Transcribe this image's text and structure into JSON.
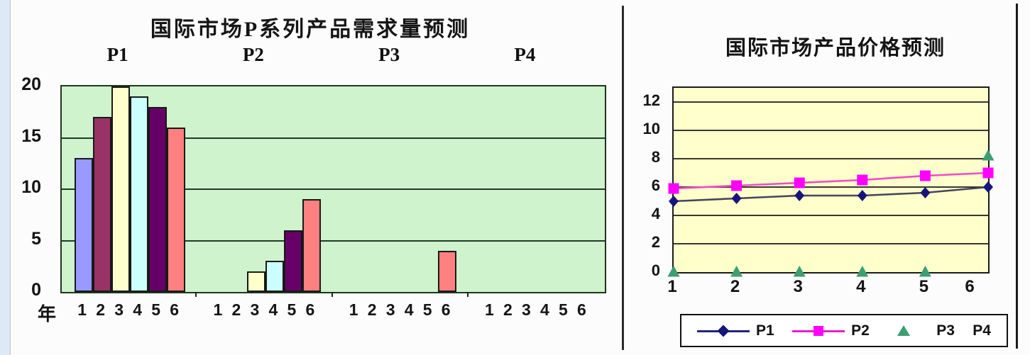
{
  "page": {
    "background": "#fcfcfc",
    "left_margin_color": "#dde9f5",
    "divider_color": "#2b2b2b"
  },
  "chart_data": [
    {
      "type": "bar",
      "title": "国际市场P系列产品需求量预测",
      "xlabel": "年",
      "x_tick_labels": [
        "1",
        "2",
        "3",
        "4",
        "5",
        "6"
      ],
      "y_ticks": [
        0,
        5,
        10,
        15,
        20
      ],
      "ylim": [
        0,
        20
      ],
      "grid": true,
      "plot_bg": "#cff3cd",
      "bar_border_color": "#191919",
      "bar_colors_by_year": [
        "#9999ff",
        "#993366",
        "#ffffcc",
        "#ccffff",
        "#660066",
        "#ff8080"
      ],
      "groups": [
        {
          "label": "P1",
          "values": [
            13,
            17,
            20,
            19,
            18,
            16
          ]
        },
        {
          "label": "P2",
          "values": [
            0,
            0,
            2,
            3,
            6,
            9
          ]
        },
        {
          "label": "P3",
          "values": [
            0,
            0,
            0,
            0,
            0,
            4
          ]
        },
        {
          "label": "P4",
          "values": [
            0,
            0,
            0,
            0,
            0,
            0
          ]
        }
      ]
    },
    {
      "type": "line",
      "title": "国际市场产品价格预测",
      "x": [
        "1",
        "2",
        "3",
        "4",
        "5",
        "6"
      ],
      "y_ticks": [
        0,
        2,
        4,
        6,
        8,
        10,
        12
      ],
      "ylim": [
        0,
        13
      ],
      "grid": true,
      "plot_bg": "#ffffcc",
      "legend_position": "bottom",
      "series": [
        {
          "name": "P1",
          "marker": "diamond",
          "marker_color": "#16167a",
          "line_color": "#45455c",
          "legend_line_color": "#24247e",
          "values": [
            5.0,
            5.2,
            5.4,
            5.4,
            5.6,
            6.0
          ]
        },
        {
          "name": "P2",
          "marker": "square",
          "marker_color": "#ff00ff",
          "line_color": "#f04ac8",
          "legend_line_color": "#e81fd0",
          "values": [
            5.9,
            6.1,
            6.3,
            6.5,
            6.8,
            7.0
          ]
        },
        {
          "name": "P3",
          "marker": "triangle",
          "marker_color": "#3c9e72",
          "line_color": null,
          "legend_line_color": null,
          "values": [
            0,
            0,
            0,
            0,
            0,
            8.2
          ]
        },
        {
          "name": "P4",
          "marker": "none",
          "marker_color": null,
          "line_color": null,
          "legend_line_color": null,
          "values": []
        }
      ]
    }
  ]
}
